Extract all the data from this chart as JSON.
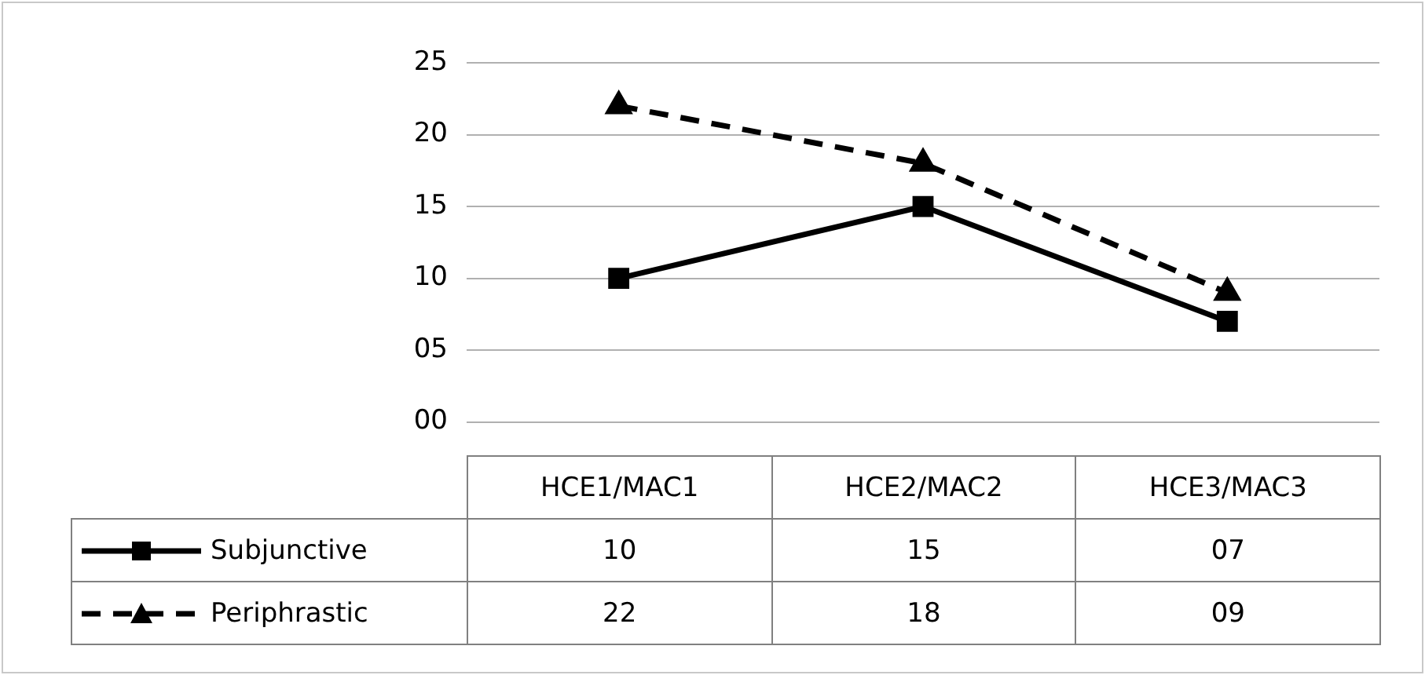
{
  "chart_data": {
    "type": "line",
    "categories": [
      "HCE1/MAC1",
      "HCE2/MAC2",
      "HCE3/MAC3"
    ],
    "series": [
      {
        "name": "Subjunctive",
        "color": "#000000",
        "values": [
          10,
          15,
          7
        ],
        "value_labels": [
          "10",
          "15",
          "07"
        ],
        "marker": "square",
        "line_style": "solid"
      },
      {
        "name": "Periphrastic",
        "color": "#000000",
        "values": [
          22,
          18,
          9
        ],
        "value_labels": [
          "22",
          "18",
          "09"
        ],
        "marker": "triangle",
        "line_style": "dashed"
      }
    ],
    "ylim": [
      0,
      25
    ],
    "yticks": [
      {
        "value": 0,
        "label": "00"
      },
      {
        "value": 5,
        "label": "05"
      },
      10,
      15,
      20,
      25
    ],
    "grid": "y",
    "legend": "bottom"
  }
}
